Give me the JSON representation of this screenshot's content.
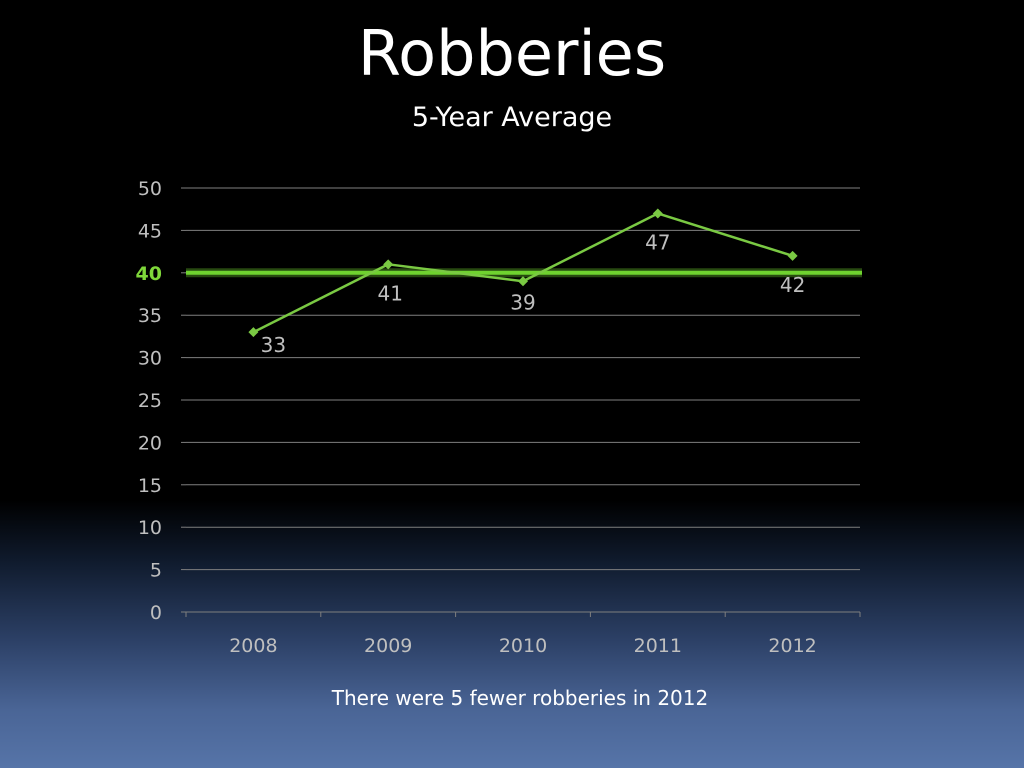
{
  "slide": {
    "title": "Robberies",
    "subtitle": "5-Year Average",
    "footnote": "There were 5 fewer robberies in 2012"
  },
  "chart_data": {
    "type": "line",
    "title": "",
    "xlabel": "",
    "ylabel": "",
    "categories": [
      "2008",
      "2009",
      "2010",
      "2011",
      "2012"
    ],
    "series": [
      {
        "values": [
          33,
          41,
          39,
          47,
          42
        ],
        "color": "#7ac943",
        "marker": "diamond",
        "data_labels": true
      }
    ],
    "reference_line": {
      "value": 40,
      "label": "40",
      "color": "#6fd22f"
    },
    "ylim": [
      0,
      50
    ],
    "yticks": [
      0,
      5,
      10,
      15,
      20,
      25,
      30,
      35,
      40,
      45,
      50
    ],
    "grid": true,
    "legend": "none",
    "colors": {
      "gridline": "#7f7f7f",
      "tick_text": "#bfbfbf",
      "average_text": "#7fd73a"
    }
  }
}
